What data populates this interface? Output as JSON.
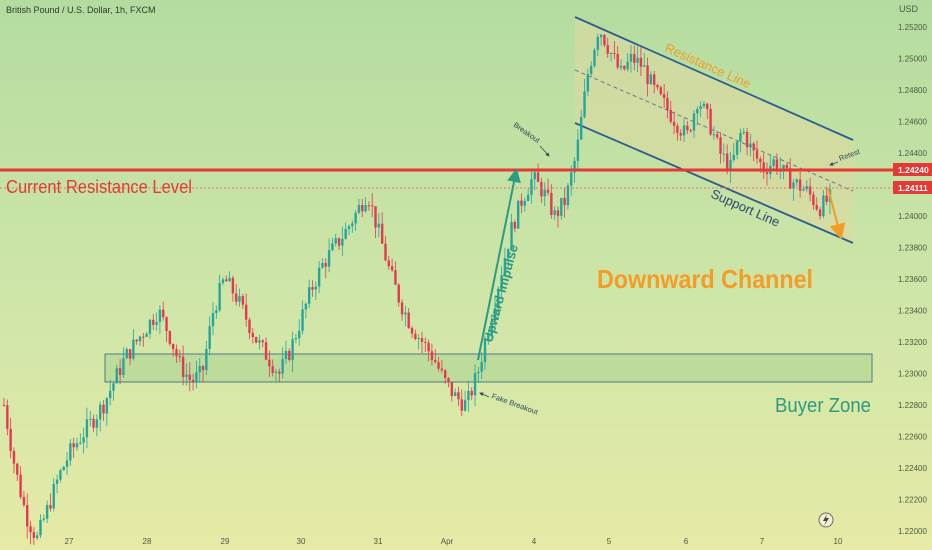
{
  "header": {
    "symbol": "British Pound / U.S. Dollar, 1h, FXCM",
    "currency": "USD"
  },
  "colors": {
    "bull": "#26a69a",
    "bear": "#e53950",
    "resistance": "#e53935",
    "channel_fill": "#dcd8a0",
    "channel_line": "#2a5d8f",
    "buyer_zone_fill": "#b8d898",
    "orange": "#f39c28",
    "teal": "#2e9b80"
  },
  "annotations": {
    "resistance_label": "Current Resistance Level",
    "channel_label": "Downward Channel",
    "buyer_zone_label": "Buyer Zone",
    "resistance_line_label": "Resistance Line",
    "support_line_label": "Support Line",
    "upward_impulse": "Upward Impulse",
    "breakout": "Breakout",
    "fake_breakout": "Fake Breakout",
    "retest": "Retest"
  },
  "chart_data": {
    "type": "candlestick",
    "title": "British Pound / U.S. Dollar, 1h, FXCM",
    "ylabel": "USD",
    "ylim": [
      1.2188,
      1.2537
    ],
    "y_ticks": [
      "1.25200",
      "1.25000",
      "1.24800",
      "1.24600",
      "1.24400",
      "1.24200",
      "1.24000",
      "1.23800",
      "1.23600",
      "1.23400",
      "1.23200",
      "1.23000",
      "1.22800",
      "1.22600",
      "1.22400",
      "1.22200",
      "1.22000"
    ],
    "x_ticks": [
      "27",
      "28",
      "29",
      "30",
      "31",
      "Apr",
      "4",
      "5",
      "6",
      "7",
      "10"
    ],
    "price_labels": {
      "resistance": "1.24240",
      "last": "1.24111"
    },
    "resistance_level": 1.2424,
    "last_price": 1.24111,
    "buyer_zone": [
      1.2283,
      1.2301
    ],
    "channel_upper": {
      "from": [
        "4",
        1.2525
      ],
      "to": [
        "10",
        1.2444
      ]
    },
    "channel_lower": {
      "from": [
        "4",
        1.2466
      ],
      "to": [
        "10",
        1.2373
      ]
    },
    "closes": [
      1.228,
      1.224,
      1.221,
      1.2195,
      1.2215,
      1.2235,
      1.225,
      1.226,
      1.227,
      1.228,
      1.2295,
      1.231,
      1.232,
      1.233,
      1.234,
      1.2325,
      1.2305,
      1.2295,
      1.23,
      1.234,
      1.236,
      1.235,
      1.2335,
      1.232,
      1.231,
      1.23,
      1.2315,
      1.2335,
      1.2355,
      1.237,
      1.238,
      1.239,
      1.2402,
      1.2415,
      1.239,
      1.2365,
      1.2345,
      1.233,
      1.232,
      1.231,
      1.2295,
      1.2285,
      1.228,
      1.23,
      1.233,
      1.236,
      1.239,
      1.241,
      1.2424,
      1.2415,
      1.24,
      1.241,
      1.244,
      1.249,
      1.252,
      1.2505,
      1.249,
      1.25,
      1.2495,
      1.248,
      1.247,
      1.246,
      1.245,
      1.2475,
      1.246,
      1.244,
      1.243,
      1.2455,
      1.244,
      1.243,
      1.2435,
      1.2425,
      1.242,
      1.2415,
      1.2405,
      1.2411
    ]
  }
}
